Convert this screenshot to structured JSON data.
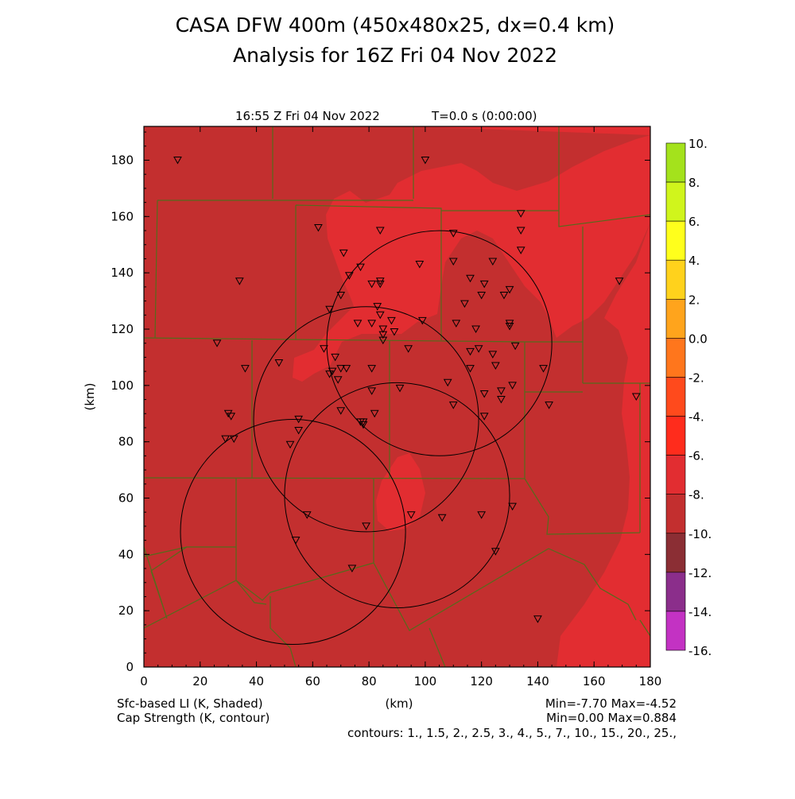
{
  "title_line1": "CASA DFW 400m (450x480x25, dx=0.4 km)",
  "title_line2": "Analysis for 16Z Fri 04 Nov 2022",
  "valid_time": "16:55 Z Fri 04 Nov 2022",
  "model_time": "T=0.0 s (0:00:00)",
  "axis_label_x": "(km)",
  "axis_label_y": "(km)",
  "x_ticks": [
    "0",
    "20",
    "40",
    "60",
    "80",
    "100",
    "120",
    "140",
    "160",
    "180"
  ],
  "y_ticks": [
    "0",
    "20",
    "40",
    "60",
    "80",
    "100",
    "120",
    "140",
    "160",
    "180"
  ],
  "shaded_field": "Sfc-based LI (K, Shaded)",
  "contour_field": "Cap Strength (K, contour)",
  "shaded_minmax": "Min=-7.70 Max=-4.52",
  "contour_minmax": "Min=0.00 Max=0.884",
  "contours_text": "contours: 1., 1.5, 2., 2.5, 3., 4., 5., 7., 10., 15., 20., 25.,",
  "colorbar": {
    "labels": [
      "10.",
      "8.",
      "6.",
      "4.",
      "2.",
      "0.0",
      "-2.",
      "-4.",
      "-6.",
      "-8.",
      "-10.",
      "-12.",
      "-14.",
      "-16."
    ],
    "colors": [
      "#a4e21c",
      "#d0f51c",
      "#ffff1c",
      "#ffd21c",
      "#ffa41c",
      "#ff761c",
      "#ff4a1c",
      "#ff2c1c",
      "#e22d31",
      "#c32f2f",
      "#8b2e34",
      "#8b2e8b",
      "#c332c3",
      "#e23de2"
    ]
  },
  "chart_data": {
    "type": "map",
    "xlim": [
      0,
      180
    ],
    "ylim": [
      0,
      192
    ],
    "radar_rings_km": [
      {
        "cx": 79,
        "cy": 88,
        "r": 40
      },
      {
        "cx": 105,
        "cy": 115,
        "r": 40
      },
      {
        "cx": 90,
        "cy": 61,
        "r": 40
      },
      {
        "cx": 53,
        "cy": 48,
        "r": 40
      }
    ],
    "stations_km": [
      [
        12,
        180
      ],
      [
        100,
        180
      ],
      [
        34,
        137
      ],
      [
        62,
        156
      ],
      [
        71,
        147
      ],
      [
        84,
        155
      ],
      [
        98,
        143
      ],
      [
        110,
        154
      ],
      [
        110,
        144
      ],
      [
        116,
        138
      ],
      [
        120,
        132
      ],
      [
        121,
        136
      ],
      [
        124,
        144
      ],
      [
        128,
        132
      ],
      [
        130,
        134
      ],
      [
        134,
        161
      ],
      [
        134,
        155
      ],
      [
        134,
        148
      ],
      [
        169,
        137
      ],
      [
        66,
        127
      ],
      [
        70,
        132
      ],
      [
        73,
        139
      ],
      [
        77,
        142
      ],
      [
        81,
        136
      ],
      [
        84,
        136
      ],
      [
        84,
        137
      ],
      [
        83,
        128
      ],
      [
        84,
        125
      ],
      [
        76,
        122
      ],
      [
        81,
        122
      ],
      [
        85,
        120
      ],
      [
        85,
        118
      ],
      [
        85,
        116
      ],
      [
        88,
        123
      ],
      [
        89,
        119
      ],
      [
        111,
        122
      ],
      [
        114,
        129
      ],
      [
        118,
        120
      ],
      [
        64,
        113
      ],
      [
        26,
        115
      ],
      [
        36,
        106
      ],
      [
        48,
        108
      ],
      [
        67,
        105
      ],
      [
        66,
        104
      ],
      [
        68,
        110
      ],
      [
        70,
        106
      ],
      [
        72,
        106
      ],
      [
        69,
        102
      ],
      [
        81,
        106
      ],
      [
        94,
        113
      ],
      [
        99,
        123
      ],
      [
        116,
        112
      ],
      [
        119,
        113
      ],
      [
        124,
        111
      ],
      [
        125,
        107
      ],
      [
        130,
        121
      ],
      [
        130,
        122
      ],
      [
        132,
        114
      ],
      [
        142,
        106
      ],
      [
        30,
        90
      ],
      [
        31,
        89
      ],
      [
        29,
        81
      ],
      [
        32,
        81
      ],
      [
        55,
        88
      ],
      [
        55,
        84
      ],
      [
        52,
        79
      ],
      [
        70,
        91
      ],
      [
        77,
        87
      ],
      [
        78,
        86
      ],
      [
        78,
        87
      ],
      [
        81,
        98
      ],
      [
        82,
        90
      ],
      [
        91,
        99
      ],
      [
        108,
        101
      ],
      [
        110,
        93
      ],
      [
        116,
        106
      ],
      [
        121,
        97
      ],
      [
        121,
        89
      ],
      [
        127,
        98
      ],
      [
        127,
        95
      ],
      [
        131,
        100
      ],
      [
        144,
        93
      ],
      [
        175,
        96
      ],
      [
        58,
        54
      ],
      [
        54,
        45
      ],
      [
        79,
        50
      ],
      [
        74,
        35
      ],
      [
        95,
        54
      ],
      [
        106,
        53
      ],
      [
        120,
        54
      ],
      [
        131,
        57
      ],
      [
        125,
        41
      ],
      [
        140,
        17
      ]
    ]
  }
}
